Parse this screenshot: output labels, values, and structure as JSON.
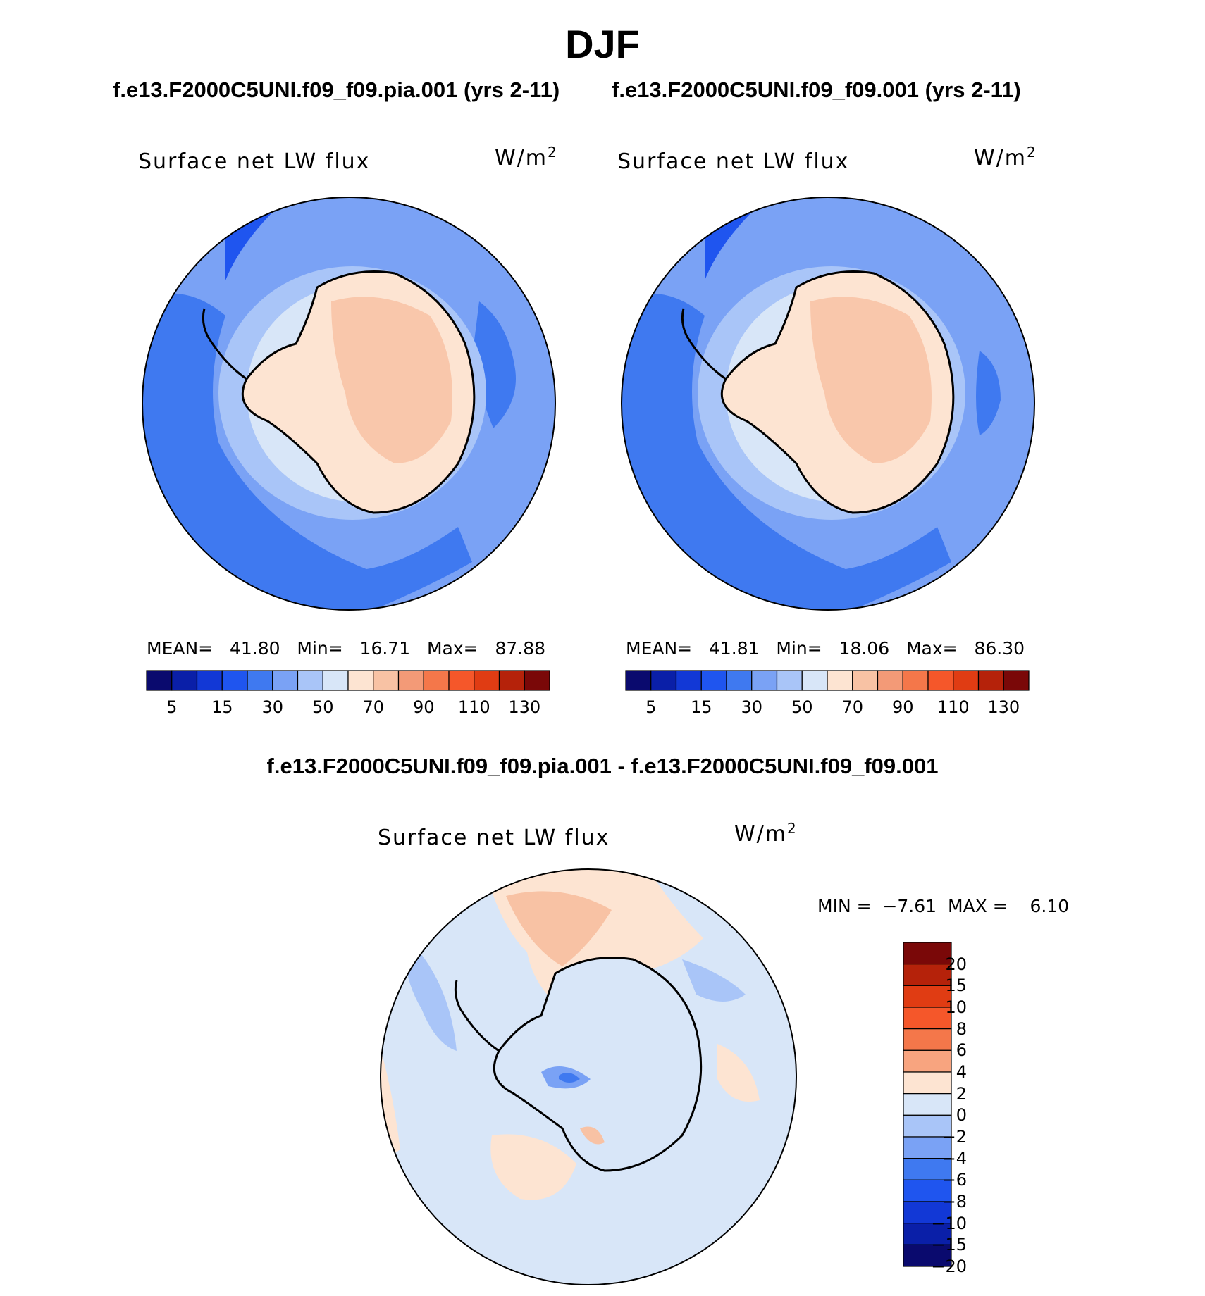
{
  "season": "DJF",
  "panels": [
    {
      "case_title": "f.e13.F2000C5UNI.f09_f09.pia.001 (yrs 2-11)",
      "variable": "Surface net LW flux",
      "units_base": "W/m",
      "units_exp": "2",
      "mean_label": "MEAN=",
      "mean": "41.80",
      "min_label": "Min=",
      "min": "16.71",
      "max_label": "Max=",
      "max": "87.88"
    },
    {
      "case_title": "f.e13.F2000C5UNI.f09_f09.001 (yrs 2-11)",
      "variable": "Surface net LW flux",
      "units_base": "W/m",
      "units_exp": "2",
      "mean_label": "MEAN=",
      "mean": "41.81",
      "min_label": "Min=",
      "min": "18.06",
      "max_label": "Max=",
      "max": "86.30"
    }
  ],
  "difference": {
    "title": "f.e13.F2000C5UNI.f09_f09.pia.001 - f.e13.F2000C5UNI.f09_f09.001",
    "variable": "Surface net LW flux",
    "units_base": "W/m",
    "units_exp": "2",
    "min_label": "MIN =",
    "min": "−7.61",
    "max_label": "MAX =",
    "max": "6.10"
  },
  "colorbar_abs": {
    "colors": [
      "#0a0a6e",
      "#0a1fa8",
      "#1238d6",
      "#1f55ef",
      "#3f79f0",
      "#7aa2f5",
      "#a9c5f8",
      "#d8e6f8",
      "#fde4d2",
      "#f8c2a4",
      "#f39a77",
      "#f4774a",
      "#f5572a",
      "#e03c13",
      "#b5220a",
      "#7a0808"
    ],
    "labels": [
      "5",
      "15",
      "30",
      "50",
      "70",
      "90",
      "110",
      "130"
    ]
  },
  "colorbar_diff": {
    "colors": [
      "#7a0808",
      "#b5220a",
      "#e03c13",
      "#f5572a",
      "#f4774a",
      "#f8a47f",
      "#fde4d2",
      "#d8e6f8",
      "#a9c5f8",
      "#7aa2f5",
      "#3f79f0",
      "#1f55ef",
      "#1238d6",
      "#0a1fa8",
      "#0a0a6e"
    ],
    "labels": [
      "20",
      "15",
      "10",
      "8",
      "6",
      "4",
      "2",
      "0",
      "−2",
      "−4",
      "−6",
      "−8",
      "−10",
      "−15",
      "−20"
    ]
  },
  "map_colors": {
    "ocean_deep": "#3f79f0",
    "ocean_mid": "#7aa2f5",
    "ocean_light": "#a9c5f8",
    "shelf": "#d8e6f8",
    "ice_low": "#fde4d2",
    "ice_high": "#f8c2a4",
    "dark_patch": "#1f55ef",
    "diff_bg": "#d8e6f8",
    "diff_pos": "#fde4d2",
    "diff_pos2": "#f8c2a4",
    "diff_neg": "#a9c5f8",
    "diff_neg2": "#7aa2f5",
    "diff_neg3": "#3f79f0"
  }
}
